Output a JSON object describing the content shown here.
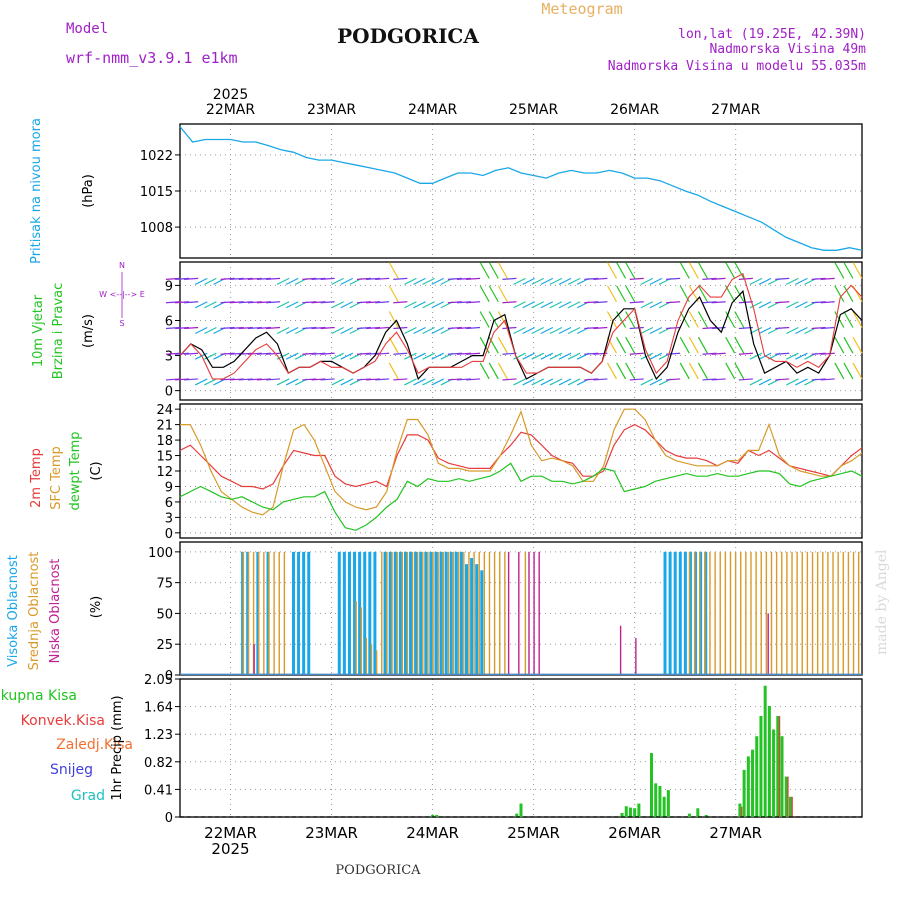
{
  "header": {
    "model_label": "Model",
    "model_name": "wrf-nmm_v3.9.1 e1km",
    "title": "PODGORICA",
    "subtitle": "Meteogram",
    "coords": "lon,lat (19.25E, 42.39N)",
    "elevation": "Nadmorska Visina 49m",
    "model_elevation": "Nadmorska Visina u modelu 55.035m",
    "footer": "PODGORICA",
    "watermark": "made by Angel"
  },
  "colors": {
    "pressure": "#1aa7e8",
    "wind_green": "#22c322",
    "wind_purple": "#a020c8",
    "temp_2m": "#e83c3c",
    "temp_sfc": "#d89a2a",
    "dewpoint": "#22c322",
    "cloud_high": "#1aa7e8",
    "cloud_mid": "#d89a2a",
    "cloud_low": "#c02090",
    "precip_total": "#22c322",
    "precip_conv": "#e83c3c"
  },
  "chart_data": [
    {
      "type": "line",
      "panel": "pressure",
      "ylabel": "Pritisak na nivou mora",
      "unit": "(hPa)",
      "ylim": [
        1002,
        1028
      ],
      "yticks": [
        1008,
        1015,
        1022
      ],
      "x_start_hours": 0,
      "x_step_hours": 3,
      "series": [
        {
          "values": [
            1027.5,
            1024.5,
            1025,
            1025,
            1025,
            1024.5,
            1024.5,
            1023.8,
            1023,
            1022.5,
            1021.5,
            1021,
            1021,
            1020.5,
            1020,
            1019.5,
            1019,
            1018.5,
            1017.5,
            1016.5,
            1016.5,
            1017.5,
            1018.5,
            1018.5,
            1018,
            1019,
            1019.5,
            1018.5,
            1018,
            1017.5,
            1018.5,
            1019,
            1018.5,
            1018.5,
            1019,
            1018.5,
            1017.5,
            1017.5,
            1017,
            1016,
            1015,
            1014.2,
            1013,
            1012,
            1011,
            1010,
            1009,
            1007.5,
            1006,
            1005,
            1004,
            1003.5,
            1003.5,
            1004,
            1003.5
          ]
        }
      ]
    },
    {
      "type": "line",
      "panel": "wind",
      "ylabel": "10m Vjetar Brzina i Pravac",
      "unit": "(m/s)",
      "compass": "N\n^\n|\nW <--|--> E\n|\nv\nS",
      "ylim": [
        -0.8,
        11
      ],
      "yticks": [
        0,
        3,
        6,
        9
      ],
      "series": [
        {
          "name_hidden": "speed",
          "values": [
            3,
            4,
            3.5,
            2,
            2,
            2.5,
            3.5,
            4.5,
            5,
            4,
            1.5,
            2,
            2,
            2.5,
            2.5,
            2,
            1.5,
            2,
            3,
            5,
            6,
            4,
            1,
            2,
            2,
            2,
            2.5,
            3,
            3,
            6,
            6.5,
            3,
            1,
            1.5,
            2,
            2,
            2,
            2,
            1.5,
            2.5,
            6,
            7,
            7,
            3,
            1,
            2,
            5,
            7,
            8,
            6,
            5,
            7.5,
            8.5,
            4,
            1.5,
            2,
            2.5,
            1.5,
            2,
            1.5,
            3,
            6.5,
            7,
            6
          ]
        },
        {
          "name_hidden": "gust",
          "values": [
            3,
            4,
            3,
            1,
            1,
            1.5,
            2.5,
            3.5,
            4,
            3,
            1.5,
            2,
            2,
            2.5,
            2,
            2,
            1.5,
            2,
            2.5,
            4,
            5,
            3.5,
            1.5,
            2,
            2,
            2,
            2,
            2.5,
            2.5,
            5,
            6,
            3,
            1.5,
            1.5,
            2,
            2,
            2,
            2,
            1.5,
            2.5,
            5,
            6,
            7,
            3.5,
            1.5,
            2.5,
            6,
            8,
            9,
            8,
            8,
            9.5,
            10,
            7,
            3,
            2.5,
            2.5,
            2,
            2.5,
            2,
            3,
            8,
            9,
            8
          ]
        }
      ]
    },
    {
      "type": "line",
      "panel": "temperature",
      "ylabels": [
        "2m Temp",
        "SFC Temp",
        "dewpt Temp"
      ],
      "unit": "(C)",
      "ylim": [
        -1,
        25
      ],
      "yticks": [
        0,
        3,
        6,
        9,
        12,
        15,
        18,
        21,
        24
      ],
      "series": [
        {
          "name": "2m Temp",
          "values": [
            16,
            17,
            15,
            13,
            11,
            10,
            9,
            9,
            8.5,
            9.5,
            13,
            16,
            15.5,
            15,
            15,
            11,
            9.5,
            9,
            9.5,
            10,
            9,
            15,
            19,
            19,
            18,
            14.5,
            13.5,
            13,
            12.5,
            12.5,
            12.5,
            15,
            17,
            19.5,
            19,
            17,
            15,
            14,
            13.5,
            11,
            11,
            12,
            17,
            20,
            21,
            20,
            18,
            16,
            15,
            14.5,
            14.5,
            14,
            13,
            14,
            13.5,
            16,
            15,
            16,
            14.5,
            13,
            12.5,
            12,
            11.5,
            11,
            13,
            15,
            16.5
          ]
        },
        {
          "name": "SFC Temp",
          "values": [
            21,
            21,
            17,
            12,
            8,
            6.5,
            5,
            4,
            3.5,
            5,
            13,
            20,
            21,
            18,
            13,
            8,
            6,
            5,
            4.5,
            5,
            8,
            16,
            22,
            22,
            19,
            13.5,
            12.5,
            12.5,
            12,
            12,
            12,
            15,
            19,
            23.5,
            17,
            14,
            14.5,
            14,
            13,
            10,
            10,
            13,
            20,
            24,
            24,
            22,
            18,
            15,
            14,
            13.5,
            13,
            13,
            13,
            14,
            14,
            16,
            16,
            21,
            15,
            13,
            12,
            11.5,
            11,
            11,
            13,
            14,
            15.5
          ]
        },
        {
          "name": "dewpt Temp",
          "values": [
            7,
            8,
            9,
            8,
            7,
            6.5,
            7,
            6,
            5,
            4.5,
            6,
            6.5,
            7,
            7,
            8,
            4,
            1,
            0.5,
            1.5,
            3,
            5,
            6.5,
            10,
            9,
            10.5,
            10,
            10,
            10.5,
            10,
            10.5,
            11,
            12,
            13.5,
            10,
            11,
            11,
            10,
            10,
            9.5,
            10,
            11,
            12.5,
            12,
            8,
            8.5,
            9,
            10,
            10.5,
            11,
            11.5,
            11,
            11,
            11.5,
            11,
            11,
            11.5,
            12,
            12,
            11.5,
            9.5,
            9,
            10,
            10.5,
            11,
            11.5,
            12,
            11
          ]
        }
      ]
    },
    {
      "type": "bar",
      "panel": "clouds",
      "ylabels": [
        "Visoka Oblacnost",
        "Srednja Oblacnost",
        "Niska Oblacnost"
      ],
      "unit": "(%)",
      "ylim": [
        0,
        100
      ],
      "yticks": [
        0,
        25,
        50,
        75,
        100
      ],
      "series": [
        {
          "name": "Visoka Oblacnost",
          "values": [
            0,
            0,
            0,
            0,
            0,
            0,
            0,
            0,
            0,
            0,
            0,
            0,
            100,
            100,
            0,
            100,
            0,
            100,
            0,
            0,
            0,
            0,
            100,
            100,
            100,
            100,
            0,
            0,
            0,
            0,
            0,
            100,
            100,
            100,
            100,
            100,
            100,
            100,
            100,
            0,
            100,
            100,
            100,
            100,
            100,
            100,
            100,
            100,
            100,
            100,
            100,
            100,
            100,
            100,
            100,
            100,
            90,
            95,
            90,
            85,
            0,
            0,
            0,
            0,
            0,
            0,
            0,
            0,
            0,
            0,
            0,
            0,
            0,
            0,
            0,
            0,
            0,
            0,
            0,
            0,
            0,
            0,
            0,
            0,
            0,
            0,
            0,
            0,
            0,
            0,
            0,
            0,
            0,
            0,
            0,
            100,
            100,
            100,
            100,
            100,
            100,
            100,
            100,
            100,
            0,
            0,
            0,
            0,
            0,
            0,
            0,
            0,
            0,
            0,
            0,
            0,
            0,
            0,
            0,
            0,
            0,
            0,
            0,
            0,
            0,
            0,
            0,
            0,
            0,
            0,
            0,
            0,
            0,
            0
          ]
        },
        {
          "name": "Srednja Oblacnost",
          "values": [
            0,
            0,
            0,
            0,
            0,
            0,
            0,
            0,
            0,
            0,
            0,
            0,
            100,
            100,
            100,
            100,
            100,
            100,
            100,
            100,
            100,
            0,
            0,
            0,
            0,
            0,
            0,
            0,
            0,
            0,
            0,
            0,
            0,
            0,
            60,
            55,
            30,
            25,
            20,
            100,
            100,
            100,
            100,
            100,
            100,
            100,
            100,
            100,
            100,
            100,
            100,
            100,
            100,
            100,
            100,
            100,
            100,
            100,
            100,
            100,
            100,
            100,
            100,
            100,
            0,
            0,
            0,
            100,
            0,
            0,
            0,
            0,
            0,
            0,
            0,
            0,
            0,
            0,
            0,
            0,
            0,
            0,
            0,
            0,
            0,
            0,
            0,
            0,
            0,
            0,
            0,
            0,
            0,
            0,
            0,
            0,
            0,
            0,
            0,
            100,
            100,
            100,
            100,
            100,
            100,
            100,
            100,
            100,
            100,
            100,
            100,
            100,
            100,
            100,
            100,
            100,
            100,
            100,
            100,
            100,
            100,
            100,
            100,
            100,
            100,
            100,
            100,
            100,
            100,
            100,
            100,
            100,
            100
          ]
        },
        {
          "name": "Niska Oblacnost",
          "values": [
            0,
            0,
            0,
            0,
            0,
            0,
            0,
            0,
            0,
            0,
            0,
            0,
            0,
            0,
            25,
            0,
            0,
            0,
            0,
            0,
            0,
            0,
            0,
            0,
            0,
            0,
            0,
            0,
            0,
            0,
            0,
            0,
            0,
            0,
            0,
            0,
            0,
            0,
            0,
            0,
            0,
            0,
            0,
            0,
            0,
            0,
            0,
            0,
            0,
            0,
            0,
            0,
            0,
            0,
            0,
            0,
            0,
            0,
            0,
            0,
            0,
            0,
            0,
            0,
            100,
            0,
            100,
            0,
            100,
            100,
            100,
            0,
            0,
            0,
            0,
            0,
            0,
            0,
            0,
            0,
            0,
            0,
            0,
            0,
            0,
            0,
            40,
            0,
            0,
            30,
            0,
            0,
            0,
            0,
            0,
            0,
            0,
            0,
            0,
            0,
            0,
            0,
            0,
            0,
            0,
            0,
            0,
            0,
            0,
            0,
            0,
            0,
            0,
            0,
            0,
            50,
            0,
            0,
            0,
            0,
            0,
            0,
            0,
            0,
            0,
            0,
            0,
            0,
            0,
            0,
            0,
            0,
            0,
            0
          ]
        }
      ]
    },
    {
      "type": "bar",
      "panel": "precipitation",
      "ylabel": "1hr Precip (mm)",
      "legend": [
        "Ukupna Kisa",
        "Konvek.Kisa",
        "Zaledj.Kisa",
        "Snijeg",
        "Grad"
      ],
      "ylim": [
        0,
        2.05
      ],
      "yticks": [
        0,
        0.41,
        0.82,
        1.23,
        1.64,
        2.05
      ],
      "bars": [
        {
          "hour": 60,
          "total": 0.03
        },
        {
          "hour": 61,
          "total": 0.03
        },
        {
          "hour": 80,
          "total": 0.05
        },
        {
          "hour": 81,
          "total": 0.2
        },
        {
          "hour": 105,
          "total": 0.06
        },
        {
          "hour": 106,
          "total": 0.16
        },
        {
          "hour": 107,
          "total": 0.14
        },
        {
          "hour": 108,
          "total": 0.13
        },
        {
          "hour": 109,
          "total": 0.2
        },
        {
          "hour": 112,
          "total": 0.95
        },
        {
          "hour": 113,
          "total": 0.5
        },
        {
          "hour": 114,
          "total": 0.46
        },
        {
          "hour": 115,
          "total": 0.3
        },
        {
          "hour": 116,
          "total": 0.4
        },
        {
          "hour": 121,
          "total": 0.05
        },
        {
          "hour": 123,
          "total": 0.13
        },
        {
          "hour": 125,
          "total": 0.03
        },
        {
          "hour": 133,
          "total": 0.2,
          "conv": 0.15
        },
        {
          "hour": 134,
          "total": 0.7
        },
        {
          "hour": 135,
          "total": 0.9
        },
        {
          "hour": 136,
          "total": 1.0
        },
        {
          "hour": 137,
          "total": 1.2
        },
        {
          "hour": 138,
          "total": 1.5
        },
        {
          "hour": 139,
          "total": 1.95
        },
        {
          "hour": 140,
          "total": 1.65
        },
        {
          "hour": 141,
          "total": 1.3
        },
        {
          "hour": 142,
          "total": 1.5,
          "conv": 1.5
        },
        {
          "hour": 143,
          "total": 1.2
        },
        {
          "hour": 144,
          "total": 0.6,
          "conv": 0.6
        },
        {
          "hour": 145,
          "total": 0.3,
          "conv": 0.3
        }
      ]
    }
  ],
  "time_axis": {
    "year": "2025",
    "days": [
      "22MAR",
      "23MAR",
      "24MAR",
      "25MAR",
      "26MAR",
      "27MAR"
    ],
    "total_hours": 162
  }
}
